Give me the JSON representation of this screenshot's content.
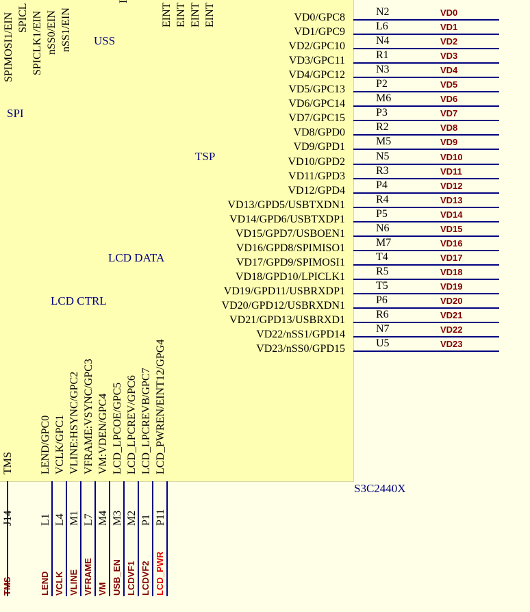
{
  "chip": {
    "part": "S3C2440X",
    "groups": {
      "uss": "USS",
      "spi": "SPI",
      "tsp": "TSP",
      "lcd_data": "LCD DATA",
      "lcd_ctrl": "LCD CTRL"
    }
  },
  "top_pins": [
    "SPIMOSI1/EIN",
    "SPICL",
    "SPICLK1/EIN",
    "nSS0/EIN",
    "nSS1/EIN",
    "I",
    "EINT",
    "EINT",
    "EINT",
    "EINT"
  ],
  "right_pins": [
    {
      "name": "VD0/GPC8",
      "ball": "N2",
      "net": "VD0"
    },
    {
      "name": "VD1/GPC9",
      "ball": "L6",
      "net": "VD1"
    },
    {
      "name": "VD2/GPC10",
      "ball": "N4",
      "net": "VD2"
    },
    {
      "name": "VD3/GPC11",
      "ball": "R1",
      "net": "VD3"
    },
    {
      "name": "VD4/GPC12",
      "ball": "N3",
      "net": "VD4"
    },
    {
      "name": "VD5/GPC13",
      "ball": "P2",
      "net": "VD5"
    },
    {
      "name": "VD6/GPC14",
      "ball": "M6",
      "net": "VD6"
    },
    {
      "name": "VD7/GPC15",
      "ball": "P3",
      "net": "VD7"
    },
    {
      "name": "VD8/GPD0",
      "ball": "R2",
      "net": "VD8"
    },
    {
      "name": "VD9/GPD1",
      "ball": "M5",
      "net": "VD9"
    },
    {
      "name": "VD10/GPD2",
      "ball": "N5",
      "net": "VD10"
    },
    {
      "name": "VD11/GPD3",
      "ball": "R3",
      "net": "VD11"
    },
    {
      "name": "VD12/GPD4",
      "ball": "P4",
      "net": "VD12"
    },
    {
      "name": "VD13/GPD5/USBTXDN1",
      "ball": "R4",
      "net": "VD13"
    },
    {
      "name": "VD14/GPD6/USBTXDP1",
      "ball": "P5",
      "net": "VD14"
    },
    {
      "name": "VD15/GPD7/USBOEN1",
      "ball": "N6",
      "net": "VD15"
    },
    {
      "name": "VD16/GPD8/SPIMISO1",
      "ball": "M7",
      "net": "VD16"
    },
    {
      "name": "VD17/GPD9/SPIMOSI1",
      "ball": "T4",
      "net": "VD17"
    },
    {
      "name": "VD18/GPD10/LPICLK1",
      "ball": "R5",
      "net": "VD18"
    },
    {
      "name": "VD19/GPD11/USBRXDP1",
      "ball": "T5",
      "net": "VD19"
    },
    {
      "name": "VD20/GPD12/USBRXDN1",
      "ball": "P6",
      "net": "VD20"
    },
    {
      "name": "VD21/GPD13/USBRXD1",
      "ball": "R6",
      "net": "VD21"
    },
    {
      "name": "VD22/nSS1/GPD14",
      "ball": "N7",
      "net": "VD22"
    },
    {
      "name": "VD23/nSS0/GPD15",
      "ball": "U5",
      "net": "VD23"
    }
  ],
  "bottom_pins": [
    {
      "name": "TMS",
      "ball": "J14",
      "net": "TMS"
    },
    {
      "name": "LEND/GPC0",
      "ball": "L1",
      "net": "LEND"
    },
    {
      "name": "VCLK/GPC1",
      "ball": "L4",
      "net": "VCLK"
    },
    {
      "name": "VLINE:HSYNC/GPC2",
      "ball": "M1",
      "net": "VLINE"
    },
    {
      "name": "VFRAME:VSYNC/GPC3",
      "ball": "L7",
      "net": "VFRAME"
    },
    {
      "name": "VM:VDEN/GPC4",
      "ball": "M4",
      "net": "VM"
    },
    {
      "name": "LCD_LPCOE/GPC5",
      "ball": "M3",
      "net": "USB_EN"
    },
    {
      "name": "LCD_LPCREV/GPC6",
      "ball": "M2",
      "net": "LCDVF1"
    },
    {
      "name": "LCD_LPCREVB/GPC7",
      "ball": "P1",
      "net": "LCDVF2"
    },
    {
      "name": "LCD_PWREN/EINT12/GPG4",
      "ball": "P11",
      "net": "LCD_PWR"
    }
  ]
}
